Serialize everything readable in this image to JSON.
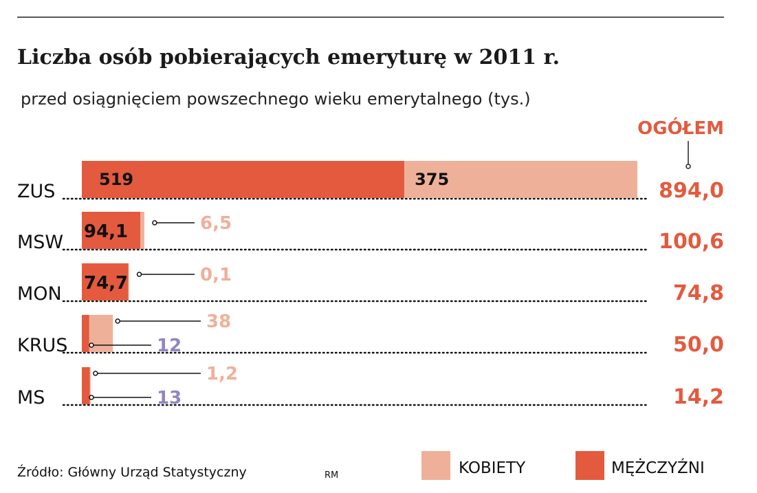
{
  "chart_data": {
    "type": "bar",
    "orientation": "horizontal",
    "stacked": true,
    "title": "Liczba osób pobierających emeryturę w 2011 r.",
    "subtitle": "przed osiągnięciem powszechnego wieku emerytalnego (tys.)",
    "total_header": "OGÓŁEM",
    "categories": [
      "ZUS",
      "MSW",
      "MON",
      "KRUS",
      "MS"
    ],
    "series": [
      {
        "name": "MĘŻCZYŹNI",
        "color": "#e35a3f",
        "values": [
          519,
          94.1,
          74.7,
          12,
          13
        ],
        "labels": [
          "519",
          "94,1",
          "74,7",
          "12",
          "13"
        ]
      },
      {
        "name": "KOBIETY",
        "color": "#efb09a",
        "values": [
          375,
          6.5,
          0.1,
          38,
          1.2
        ],
        "labels": [
          "375",
          "6,5",
          "0,1",
          "38",
          "1,2"
        ]
      }
    ],
    "totals": [
      "894,0",
      "100,6",
      "74,8",
      "50,0",
      "14,2"
    ],
    "small_label_color_men": "#9286c0",
    "grid": false,
    "legend_position": "bottom-right"
  },
  "source": "Źródło: Główny Urząd Statystyczny",
  "author": "RM"
}
